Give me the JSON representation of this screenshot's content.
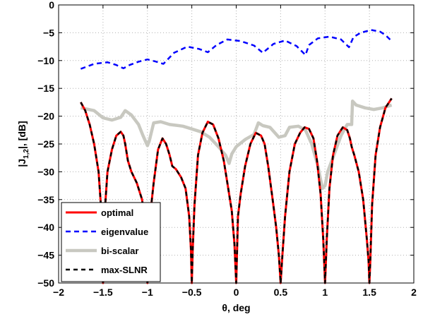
{
  "chart_data": {
    "type": "line",
    "xlabel": "θ, deg",
    "ylabel_parts": {
      "prefix": "|J",
      "sub": "1,2",
      "suffix": "|, [dB]"
    },
    "xlim": [
      -2,
      2
    ],
    "ylim": [
      -50,
      0
    ],
    "xticks": [
      -2,
      -1.5,
      -1,
      -0.5,
      0,
      0.5,
      1,
      1.5,
      2
    ],
    "yticks": [
      0,
      -5,
      -10,
      -15,
      -20,
      -25,
      -30,
      -35,
      -40,
      -45,
      -50
    ],
    "xtick_labels": [
      "−2",
      "−1.5",
      "−1",
      "−0.5",
      "0",
      "0.5",
      "1",
      "1.5",
      "2"
    ],
    "ytick_labels": [
      "0",
      "−5",
      "−10",
      "−15",
      "−20",
      "−25",
      "−30",
      "−35",
      "−40",
      "−45",
      "−50"
    ],
    "grid": true,
    "legend_position": "bottom-left",
    "series": [
      {
        "name": "optimal",
        "color": "#ff0000",
        "style": "solid",
        "x": [
          -1.75,
          -1.7,
          -1.65,
          -1.6,
          -1.55,
          -1.52,
          -1.5,
          -1.48,
          -1.45,
          -1.4,
          -1.35,
          -1.3,
          -1.27,
          -1.25,
          -1.22,
          -1.18,
          -1.12,
          -1.06,
          -1.02,
          -1.01,
          -1.0,
          -0.99,
          -0.97,
          -0.93,
          -0.88,
          -0.83,
          -0.79,
          -0.75,
          -0.72,
          -0.68,
          -0.62,
          -0.57,
          -0.53,
          -0.51,
          -0.5,
          -0.49,
          -0.47,
          -0.43,
          -0.38,
          -0.32,
          -0.26,
          -0.2,
          -0.14,
          -0.09,
          -0.05,
          -0.02,
          0.0,
          0.02,
          0.05,
          0.1,
          0.16,
          0.22,
          0.28,
          0.32,
          0.36,
          0.41,
          0.45,
          0.48,
          0.5,
          0.52,
          0.55,
          0.6,
          0.66,
          0.72,
          0.77,
          0.82,
          0.87,
          0.91,
          0.95,
          0.98,
          1.0,
          1.02,
          1.05,
          1.09,
          1.14,
          1.2,
          1.25,
          1.28,
          1.3,
          1.33,
          1.38,
          1.43,
          1.47,
          1.49,
          1.5,
          1.51,
          1.53,
          1.57,
          1.62,
          1.68,
          1.75
        ],
        "y": [
          -17.5,
          -19,
          -21.5,
          -25,
          -30,
          -37,
          -50,
          -37,
          -30,
          -26,
          -23.5,
          -22.8,
          -23.5,
          -25,
          -28,
          -30,
          -32,
          -35,
          -40,
          -44,
          -50,
          -44,
          -38,
          -32,
          -26,
          -24,
          -25,
          -27,
          -29,
          -29.5,
          -31,
          -33,
          -38,
          -44,
          -50,
          -44,
          -36,
          -27,
          -23,
          -21,
          -21.5,
          -24,
          -28,
          -33,
          -37,
          -43,
          -50,
          -38,
          -34,
          -29,
          -25,
          -23,
          -23.5,
          -25,
          -29,
          -35,
          -40,
          -45,
          -50,
          -45,
          -38,
          -30,
          -25,
          -23,
          -22,
          -22.3,
          -24,
          -28,
          -34,
          -42,
          -50,
          -42,
          -33,
          -27,
          -23.5,
          -22,
          -22.5,
          -24,
          -25.5,
          -27,
          -30,
          -35,
          -42,
          -46,
          -50,
          -46,
          -36,
          -27,
          -22,
          -18.5,
          -16.8
        ]
      },
      {
        "name": "eigenvalue",
        "color": "#0000ff",
        "style": "dashed",
        "x": [
          -1.75,
          -1.6,
          -1.45,
          -1.35,
          -1.27,
          -1.2,
          -1.1,
          -1.0,
          -0.9,
          -0.82,
          -0.7,
          -0.55,
          -0.42,
          -0.32,
          -0.22,
          -0.1,
          0.05,
          0.2,
          0.3,
          0.42,
          0.55,
          0.68,
          0.78,
          0.82,
          0.92,
          1.05,
          1.18,
          1.27,
          1.32,
          1.4,
          1.52,
          1.62,
          1.68,
          1.75
        ],
        "y": [
          -11.5,
          -10.6,
          -10.3,
          -10.8,
          -11.4,
          -10.8,
          -10.2,
          -9.8,
          -10.2,
          -10.6,
          -8.6,
          -7.5,
          -7.9,
          -8.5,
          -7.2,
          -6.2,
          -6.5,
          -7.3,
          -8.6,
          -7.0,
          -6.4,
          -7.4,
          -9.0,
          -7.2,
          -6.0,
          -5.7,
          -6.2,
          -7.6,
          -5.8,
          -5.0,
          -4.5,
          -4.8,
          -5.4,
          -6.5
        ]
      },
      {
        "name": "bi-scalar",
        "color": "#c8c8c0",
        "style": "solid",
        "x": [
          -1.75,
          -1.6,
          -1.5,
          -1.4,
          -1.3,
          -1.25,
          -1.18,
          -1.1,
          -1.05,
          -1.0,
          -0.98,
          -0.93,
          -0.85,
          -0.75,
          -0.6,
          -0.5,
          -0.4,
          -0.3,
          -0.2,
          -0.12,
          -0.08,
          -0.05,
          0.0,
          0.1,
          0.2,
          0.25,
          0.3,
          0.38,
          0.48,
          0.55,
          0.6,
          0.7,
          0.78,
          0.85,
          0.92,
          0.97,
          1.0,
          1.03,
          1.1,
          1.18,
          1.25,
          1.3,
          1.31,
          1.35,
          1.45,
          1.55,
          1.65,
          1.75
        ],
        "y": [
          -18.5,
          -19,
          -20.3,
          -20.7,
          -20.2,
          -19.0,
          -19.8,
          -21.5,
          -23.5,
          -25.3,
          -24.5,
          -21.2,
          -21.0,
          -21.5,
          -21.8,
          -22.3,
          -22.8,
          -23.8,
          -25.5,
          -27.0,
          -28.5,
          -26.8,
          -25.5,
          -24.2,
          -23.3,
          -21.2,
          -21.7,
          -22.0,
          -23.8,
          -23.5,
          -22.0,
          -21.8,
          -22.5,
          -25.0,
          -29.0,
          -33.0,
          -32.5,
          -30.0,
          -27.0,
          -23.5,
          -21.5,
          -21.5,
          -17.3,
          -18.0,
          -18.5,
          -18.8,
          -18.5,
          -18.0
        ]
      },
      {
        "name": "max-SLNR",
        "color": "#000000",
        "style": "dashed",
        "x": [
          -1.75,
          -1.7,
          -1.65,
          -1.6,
          -1.55,
          -1.52,
          -1.5,
          -1.48,
          -1.45,
          -1.4,
          -1.35,
          -1.3,
          -1.27,
          -1.25,
          -1.22,
          -1.18,
          -1.12,
          -1.06,
          -1.02,
          -1.01,
          -1.0,
          -0.99,
          -0.97,
          -0.93,
          -0.88,
          -0.83,
          -0.79,
          -0.75,
          -0.72,
          -0.68,
          -0.62,
          -0.57,
          -0.53,
          -0.51,
          -0.5,
          -0.49,
          -0.47,
          -0.43,
          -0.38,
          -0.32,
          -0.26,
          -0.2,
          -0.14,
          -0.09,
          -0.05,
          -0.02,
          0.0,
          0.02,
          0.05,
          0.1,
          0.16,
          0.22,
          0.28,
          0.32,
          0.36,
          0.41,
          0.45,
          0.48,
          0.5,
          0.52,
          0.55,
          0.6,
          0.66,
          0.72,
          0.77,
          0.82,
          0.87,
          0.91,
          0.95,
          0.98,
          1.0,
          1.02,
          1.05,
          1.09,
          1.14,
          1.2,
          1.25,
          1.28,
          1.3,
          1.33,
          1.38,
          1.43,
          1.47,
          1.49,
          1.5,
          1.51,
          1.53,
          1.57,
          1.62,
          1.68,
          1.75
        ],
        "y": [
          -17.5,
          -19,
          -21.5,
          -25,
          -30,
          -37,
          -50,
          -37,
          -30,
          -26,
          -23.5,
          -22.8,
          -23.5,
          -25,
          -28,
          -30,
          -32,
          -35,
          -40,
          -44,
          -50,
          -44,
          -38,
          -32,
          -26,
          -24,
          -25,
          -27,
          -29,
          -29.5,
          -31,
          -33,
          -38,
          -44,
          -50,
          -44,
          -36,
          -27,
          -23,
          -21,
          -21.5,
          -24,
          -28,
          -33,
          -37,
          -43,
          -50,
          -38,
          -34,
          -29,
          -25,
          -23,
          -23.5,
          -25,
          -29,
          -35,
          -40,
          -45,
          -50,
          -45,
          -38,
          -30,
          -25,
          -23,
          -22,
          -22.3,
          -24,
          -28,
          -34,
          -42,
          -50,
          -42,
          -33,
          -27,
          -23.5,
          -22,
          -22.5,
          -24,
          -25.5,
          -27,
          -30,
          -35,
          -42,
          -46,
          -50,
          -46,
          -36,
          -27,
          -22,
          -18.5,
          -16.8
        ]
      }
    ]
  }
}
